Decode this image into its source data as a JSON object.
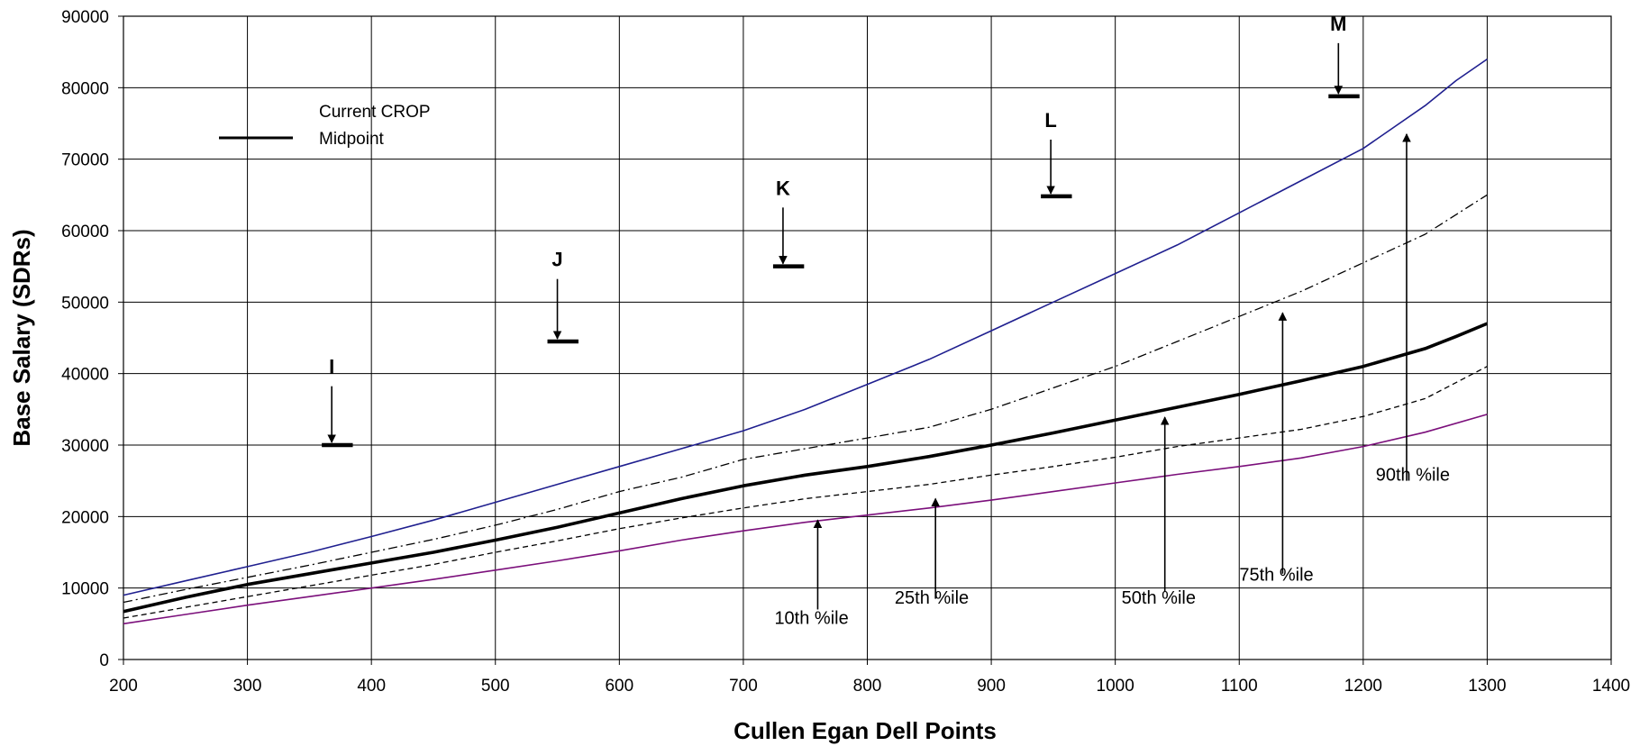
{
  "chart_data": {
    "type": "line",
    "xlabel": "Cullen Egan Dell Points",
    "ylabel": "Base Salary (SDRs)",
    "xlim": [
      200,
      1400
    ],
    "ylim": [
      0,
      90000
    ],
    "xticks": [
      200,
      300,
      400,
      500,
      600,
      700,
      800,
      900,
      1000,
      1100,
      1200,
      1300,
      1400
    ],
    "yticks": [
      0,
      10000,
      20000,
      30000,
      40000,
      50000,
      60000,
      70000,
      80000,
      90000
    ],
    "grid": true,
    "legend": {
      "label_line1": "Current CROP",
      "label_line2": "Midpoint",
      "placement": "top-left"
    },
    "series": [
      {
        "name": "90th %ile",
        "color": "#1f1f8f",
        "style": "solid",
        "x": [
          200,
          250,
          300,
          350,
          400,
          450,
          500,
          550,
          600,
          650,
          700,
          725,
          750,
          800,
          850,
          900,
          950,
          1000,
          1050,
          1100,
          1150,
          1200,
          1225,
          1250,
          1275,
          1300
        ],
        "y": [
          9000,
          11000,
          13000,
          15000,
          17200,
          19500,
          22000,
          24500,
          27000,
          29500,
          32000,
          33500,
          35000,
          38500,
          42000,
          46000,
          50000,
          54000,
          58000,
          62500,
          67000,
          71500,
          74500,
          77500,
          81000,
          84000
        ]
      },
      {
        "name": "75th %ile",
        "color": "#000000",
        "style": "dash-dot",
        "x": [
          200,
          250,
          300,
          350,
          400,
          450,
          500,
          550,
          600,
          650,
          700,
          750,
          800,
          850,
          900,
          950,
          1000,
          1050,
          1100,
          1150,
          1200,
          1250,
          1300
        ],
        "y": [
          8000,
          9800,
          11500,
          13200,
          15000,
          16800,
          18800,
          21000,
          23500,
          25500,
          28000,
          29500,
          31000,
          32500,
          35000,
          38000,
          41000,
          44500,
          48000,
          51500,
          55500,
          59500,
          65000
        ]
      },
      {
        "name": "Current CROP Midpoint",
        "color": "#000000",
        "style": "solid-thick",
        "x": [
          200,
          250,
          300,
          350,
          400,
          450,
          500,
          550,
          600,
          650,
          700,
          750,
          800,
          850,
          900,
          950,
          1000,
          1050,
          1100,
          1150,
          1200,
          1250,
          1275,
          1300
        ],
        "y": [
          6700,
          8700,
          10500,
          12000,
          13500,
          15000,
          16700,
          18500,
          20500,
          22500,
          24300,
          25800,
          27000,
          28400,
          30000,
          31700,
          33500,
          35300,
          37100,
          39000,
          41000,
          43500,
          45200,
          47000
        ]
      },
      {
        "name": "50th %ile",
        "color": "#000000",
        "style": "dashed",
        "x": [
          200,
          250,
          300,
          350,
          400,
          450,
          500,
          550,
          600,
          650,
          700,
          750,
          800,
          850,
          900,
          950,
          1000,
          1050,
          1100,
          1150,
          1200,
          1250,
          1300
        ],
        "y": [
          5800,
          7300,
          8800,
          10300,
          11800,
          13300,
          15000,
          16600,
          18300,
          19800,
          21200,
          22500,
          23500,
          24500,
          25800,
          27000,
          28300,
          29800,
          31000,
          32200,
          34000,
          36500,
          41000
        ]
      },
      {
        "name": "25th %ile",
        "color": "#7b0f7b",
        "style": "solid",
        "x": [
          200,
          250,
          300,
          350,
          400,
          450,
          500,
          550,
          600,
          650,
          700,
          750,
          800,
          850,
          900,
          950,
          1000,
          1050,
          1100,
          1150,
          1200,
          1250,
          1300
        ],
        "y": [
          5000,
          6300,
          7600,
          8800,
          10000,
          11200,
          12500,
          13800,
          15200,
          16700,
          18000,
          19200,
          20200,
          21200,
          22300,
          23500,
          24700,
          25900,
          27000,
          28200,
          29800,
          31800,
          34300
        ]
      }
    ],
    "annotations": [
      {
        "text": "10th %ile",
        "arrow_x": 760,
        "arrow_from_y": 7000,
        "arrow_to_y": 19500,
        "label_x": 755,
        "label_y": 5000
      },
      {
        "text": "25th %ile",
        "arrow_x": 855,
        "arrow_from_y": 8500,
        "arrow_to_y": 22500,
        "label_x": 852,
        "label_y": 7800
      },
      {
        "text": "50th %ile",
        "arrow_x": 1040,
        "arrow_from_y": 9500,
        "arrow_to_y": 33900,
        "label_x": 1035,
        "label_y": 7800
      },
      {
        "text": "75th %ile",
        "arrow_x": 1135,
        "arrow_from_y": 12000,
        "arrow_to_y": 48500,
        "label_x": 1130,
        "label_y": 11000
      },
      {
        "text": "90th %ile",
        "arrow_x": 1235,
        "arrow_from_y": 25000,
        "arrow_to_y": 73500,
        "label_x": 1240,
        "label_y": 25000
      }
    ],
    "grade_markers": [
      {
        "label": "I",
        "x_start": 360,
        "x_end": 385,
        "y": 30000,
        "arrow_x": 368,
        "label_y": 40000
      },
      {
        "label": "J",
        "x_start": 542,
        "x_end": 567,
        "y": 44500,
        "arrow_x": 550,
        "label_y": 55000
      },
      {
        "label": "K",
        "x_start": 724,
        "x_end": 749,
        "y": 55000,
        "arrow_x": 732,
        "label_y": 65000
      },
      {
        "label": "L",
        "x_start": 940,
        "x_end": 965,
        "y": 64800,
        "arrow_x": 948,
        "label_y": 74500
      },
      {
        "label": "M",
        "x_start": 1172,
        "x_end": 1197,
        "y": 78800,
        "arrow_x": 1180,
        "label_y": 88000
      }
    ]
  }
}
